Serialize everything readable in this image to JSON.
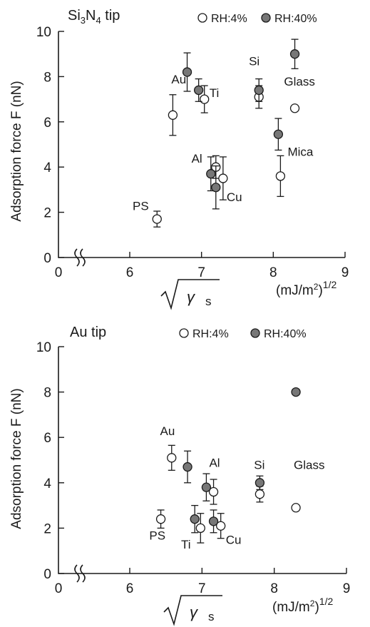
{
  "chart_data": [
    {
      "type": "scatter",
      "title_main": "Si",
      "title_sub3": "3",
      "title_n": "N",
      "title_sub4": "4",
      "title_rest": " tip",
      "ylabel": "Adsorption force F (nN)",
      "xlabel_symbol": "γ",
      "xlabel_sub": "s",
      "xunit": "(mJ/m",
      "xunit_sup2": "2",
      "xunit_close": ")",
      "xunit_exp": "1/2",
      "xlim": [
        6,
        9
      ],
      "ylim": [
        0,
        10
      ],
      "xticks": [
        "0",
        "6",
        "7",
        "8",
        "9"
      ],
      "yticks": [
        "0",
        "2",
        "4",
        "6",
        "8",
        "10"
      ],
      "axis_break": true,
      "legend": [
        {
          "name": "RH:4%",
          "marker": "open-circle"
        },
        {
          "name": "RH:40%",
          "marker": "filled-circle"
        }
      ],
      "legend_position": "top",
      "series": [
        {
          "name": "RH:4%",
          "marker": "open-circle",
          "points": [
            {
              "x": 6.38,
              "y": 1.7,
              "err": 0.35
            },
            {
              "x": 6.6,
              "y": 6.3,
              "err": 0.9
            },
            {
              "x": 7.04,
              "y": 7.0,
              "err": 0.6
            },
            {
              "x": 7.2,
              "y": 4.0,
              "err": 0.5
            },
            {
              "x": 7.3,
              "y": 3.5,
              "err": 0.95
            },
            {
              "x": 7.8,
              "y": 7.1,
              "err": 0.5
            },
            {
              "x": 8.1,
              "y": 3.6,
              "err": 0.9
            },
            {
              "x": 8.3,
              "y": 6.6,
              "err": 0
            }
          ]
        },
        {
          "name": "RH:40%",
          "marker": "filled-circle",
          "points": [
            {
              "x": 6.8,
              "y": 8.2,
              "err": 0.85
            },
            {
              "x": 6.96,
              "y": 7.4,
              "err": 0.5
            },
            {
              "x": 7.13,
              "y": 3.7,
              "err": 0.75
            },
            {
              "x": 7.2,
              "y": 3.1,
              "err": 0.95
            },
            {
              "x": 7.8,
              "y": 7.4,
              "err": 0.5
            },
            {
              "x": 8.07,
              "y": 5.45,
              "err": 0.7
            },
            {
              "x": 8.3,
              "y": 9.0,
              "err": 0.65
            }
          ]
        }
      ],
      "annotations": [
        {
          "text": "Au",
          "x": 6.58,
          "y": 7.7
        },
        {
          "text": "Ti",
          "x": 7.11,
          "y": 7.1
        },
        {
          "text": "Si",
          "x": 7.66,
          "y": 8.5
        },
        {
          "text": "Glass",
          "x": 8.15,
          "y": 7.6
        },
        {
          "text": "Al",
          "x": 6.86,
          "y": 4.2
        },
        {
          "text": "Cu",
          "x": 7.35,
          "y": 2.5
        },
        {
          "text": "Mica",
          "x": 8.2,
          "y": 4.5
        },
        {
          "text": "PS",
          "x": 6.04,
          "y": 2.1
        }
      ]
    },
    {
      "type": "scatter",
      "title_main": "Au tip",
      "ylabel": "Adsorption force F (nN)",
      "xlabel_symbol": "γ",
      "xlabel_sub": "s",
      "xunit": "(mJ/m",
      "xunit_sup2": "2",
      "xunit_close": ")",
      "xunit_exp": "1/2",
      "xlim": [
        6,
        9
      ],
      "ylim": [
        0,
        10
      ],
      "xticks": [
        "0",
        "6",
        "7",
        "8",
        "9"
      ],
      "yticks": [
        "0",
        "2",
        "4",
        "6",
        "8",
        "10"
      ],
      "axis_break": true,
      "legend": [
        {
          "name": "RH:4%",
          "marker": "open-circle"
        },
        {
          "name": "RH:40%",
          "marker": "filled-circle"
        }
      ],
      "legend_position": "top",
      "series": [
        {
          "name": "RH:4%",
          "marker": "open-circle",
          "points": [
            {
              "x": 6.43,
              "y": 2.4,
              "err": 0.4
            },
            {
              "x": 6.58,
              "y": 5.1,
              "err": 0.55
            },
            {
              "x": 6.98,
              "y": 2.0,
              "err": 0.65
            },
            {
              "x": 7.16,
              "y": 3.6,
              "err": 0.55
            },
            {
              "x": 7.26,
              "y": 2.1,
              "err": 0.55
            },
            {
              "x": 7.8,
              "y": 3.5,
              "err": 0.35
            },
            {
              "x": 8.3,
              "y": 2.9,
              "err": 0
            }
          ]
        },
        {
          "name": "RH:40%",
          "marker": "filled-circle",
          "points": [
            {
              "x": 6.8,
              "y": 4.7,
              "err": 0.7
            },
            {
              "x": 6.9,
              "y": 2.4,
              "err": 0.6
            },
            {
              "x": 7.06,
              "y": 3.8,
              "err": 0.6
            },
            {
              "x": 7.16,
              "y": 2.3,
              "err": 0.5
            },
            {
              "x": 7.8,
              "y": 4.0,
              "err": 0.3
            },
            {
              "x": 8.3,
              "y": 8.0,
              "err": 0
            }
          ]
        }
      ],
      "annotations": [
        {
          "text": "Au",
          "x": 6.42,
          "y": 6.1
        },
        {
          "text": "Al",
          "x": 7.1,
          "y": 4.7
        },
        {
          "text": "Si",
          "x": 7.72,
          "y": 4.6
        },
        {
          "text": "Glass",
          "x": 8.27,
          "y": 4.6
        },
        {
          "text": "PS",
          "x": 6.27,
          "y": 1.5
        },
        {
          "text": "Ti",
          "x": 6.71,
          "y": 1.1
        },
        {
          "text": "Cu",
          "x": 7.33,
          "y": 1.3
        }
      ]
    }
  ]
}
